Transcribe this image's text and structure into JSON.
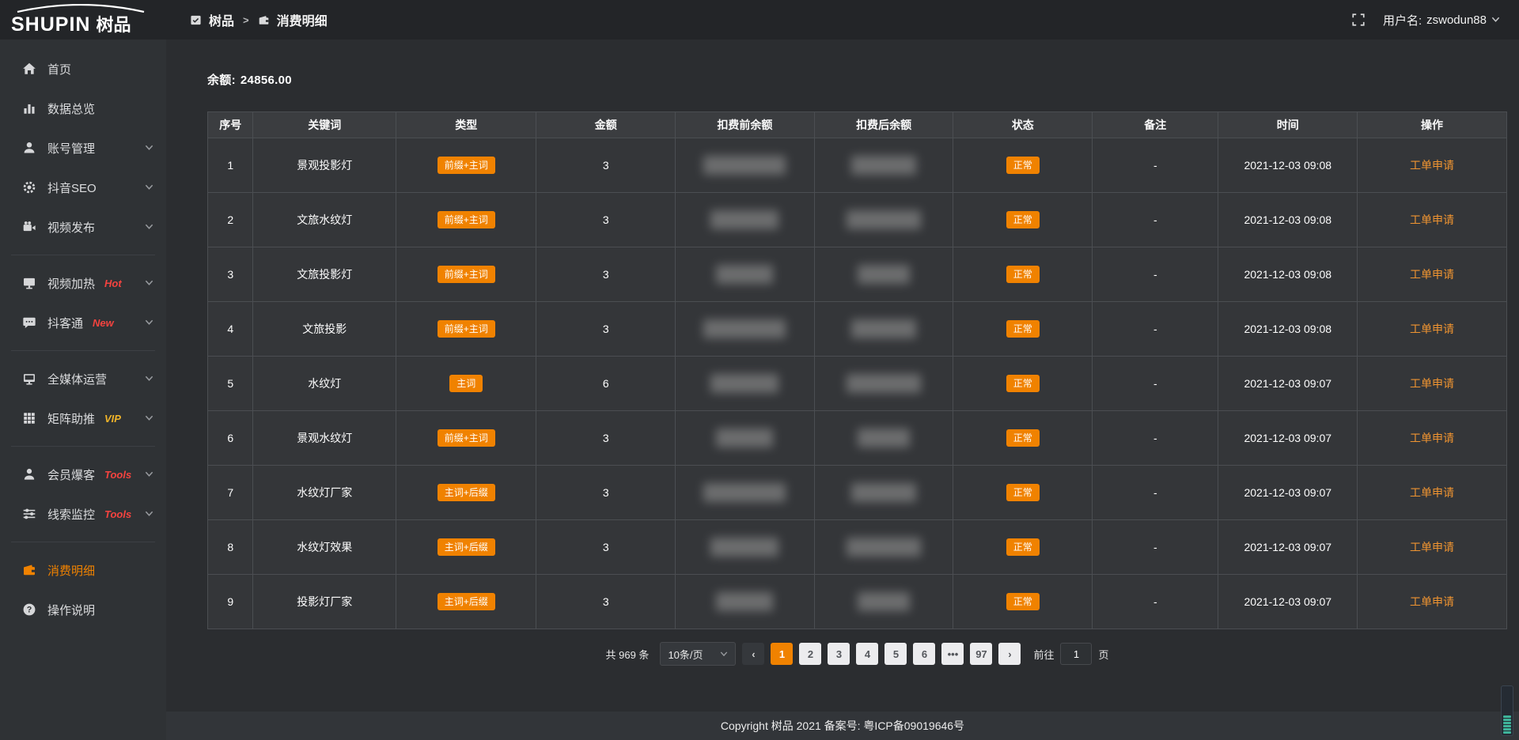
{
  "logo": {
    "brand_en": "SHUPIN",
    "brand_cn": "树品"
  },
  "topbar": {
    "breadcrumb": {
      "root": "树品",
      "separator": ">",
      "current": "消费明细"
    },
    "user_label": "用户名:",
    "username": "zswodun88"
  },
  "sidebar": {
    "items": [
      {
        "icon": "home",
        "label": "首页"
      },
      {
        "icon": "chart",
        "label": "数据总览"
      },
      {
        "icon": "user",
        "label": "账号管理",
        "expand": true
      },
      {
        "icon": "gear",
        "label": "抖音SEO",
        "expand": true
      },
      {
        "icon": "video",
        "label": "视频发布",
        "expand": true
      },
      {
        "divider": true
      },
      {
        "icon": "display",
        "label": "视频加热",
        "badge": "Hot",
        "badge_color": "red",
        "expand": true
      },
      {
        "icon": "chat",
        "label": "抖客通",
        "badge": "New",
        "badge_color": "red",
        "expand": true
      },
      {
        "divider": true
      },
      {
        "icon": "monitor",
        "label": "全媒体运营",
        "expand": true
      },
      {
        "icon": "grid",
        "label": "矩阵助推",
        "badge": "VIP",
        "badge_color": "gold",
        "expand": true
      },
      {
        "divider": true
      },
      {
        "icon": "member",
        "label": "会员爆客",
        "badge": "Tools",
        "badge_color": "red",
        "expand": true
      },
      {
        "icon": "sliders",
        "label": "线索监控",
        "badge": "Tools",
        "badge_color": "red",
        "expand": true
      },
      {
        "divider": true
      },
      {
        "icon": "wallet",
        "label": "消费明细",
        "active": true
      },
      {
        "icon": "question",
        "label": "操作说明"
      }
    ]
  },
  "main": {
    "balance_label": "余额:",
    "balance_value": "24856.00",
    "table": {
      "headers": [
        "序号",
        "关键词",
        "类型",
        "金额",
        "扣费前余额",
        "扣费后余额",
        "状态",
        "备注",
        "时间",
        "操作"
      ],
      "col_widths": [
        "3.5%",
        "11%",
        "10.8%",
        "10.7%",
        "10.7%",
        "10.7%",
        "10.7%",
        "9.7%",
        "10.7%",
        "11.5%"
      ],
      "rows": [
        {
          "seq": "1",
          "keyword": "景观投影灯",
          "type": "前缀+主词",
          "amount": "3",
          "pre_masked": true,
          "post_masked": true,
          "status": "正常",
          "note": "-",
          "time": "2021-12-03 09:08",
          "action": "工单申请"
        },
        {
          "seq": "2",
          "keyword": "文旅水纹灯",
          "type": "前缀+主词",
          "amount": "3",
          "pre_masked": true,
          "post_masked": true,
          "status": "正常",
          "note": "-",
          "time": "2021-12-03 09:08",
          "action": "工单申请"
        },
        {
          "seq": "3",
          "keyword": "文旅投影灯",
          "type": "前缀+主词",
          "amount": "3",
          "pre_masked": true,
          "post_masked": true,
          "status": "正常",
          "note": "-",
          "time": "2021-12-03 09:08",
          "action": "工单申请"
        },
        {
          "seq": "4",
          "keyword": "文旅投影",
          "type": "前缀+主词",
          "amount": "3",
          "pre_masked": true,
          "post_masked": true,
          "status": "正常",
          "note": "-",
          "time": "2021-12-03 09:08",
          "action": "工单申请"
        },
        {
          "seq": "5",
          "keyword": "水纹灯",
          "type": "主词",
          "amount": "6",
          "pre_masked": true,
          "post_masked": true,
          "status": "正常",
          "note": "-",
          "time": "2021-12-03 09:07",
          "action": "工单申请"
        },
        {
          "seq": "6",
          "keyword": "景观水纹灯",
          "type": "前缀+主词",
          "amount": "3",
          "pre_masked": true,
          "post_masked": true,
          "status": "正常",
          "note": "-",
          "time": "2021-12-03 09:07",
          "action": "工单申请"
        },
        {
          "seq": "7",
          "keyword": "水纹灯厂家",
          "type": "主词+后缀",
          "amount": "3",
          "pre_masked": true,
          "post_masked": true,
          "status": "正常",
          "note": "-",
          "time": "2021-12-03 09:07",
          "action": "工单申请"
        },
        {
          "seq": "8",
          "keyword": "水纹灯效果",
          "type": "主词+后缀",
          "amount": "3",
          "pre_masked": true,
          "post_masked": true,
          "status": "正常",
          "note": "-",
          "time": "2021-12-03 09:07",
          "action": "工单申请"
        },
        {
          "seq": "9",
          "keyword": "投影灯厂家",
          "type": "主词+后缀",
          "amount": "3",
          "pre_masked": true,
          "post_masked": true,
          "status": "正常",
          "note": "-",
          "time": "2021-12-03 09:07",
          "action": "工单申请"
        }
      ]
    },
    "pagination": {
      "total": "共 969 条",
      "page_size": "10条/页",
      "prev": "‹",
      "next": "›",
      "pages": [
        "1",
        "2",
        "3",
        "4",
        "5",
        "6",
        "•••",
        "97"
      ],
      "active_page": "1",
      "goto_label": "前往",
      "goto_value": "1",
      "goto_suffix": "页"
    }
  },
  "footer": {
    "copyright": "Copyright 树品 2021 备案号: 粤ICP备09019646号"
  },
  "colors": {
    "accent": "#f08200",
    "badge_red": "#f5433f",
    "badge_gold": "#f0b429",
    "sidebar_bg": "#2f3235",
    "topbar_bg": "#232528",
    "content_bg": "#2b2d30"
  }
}
